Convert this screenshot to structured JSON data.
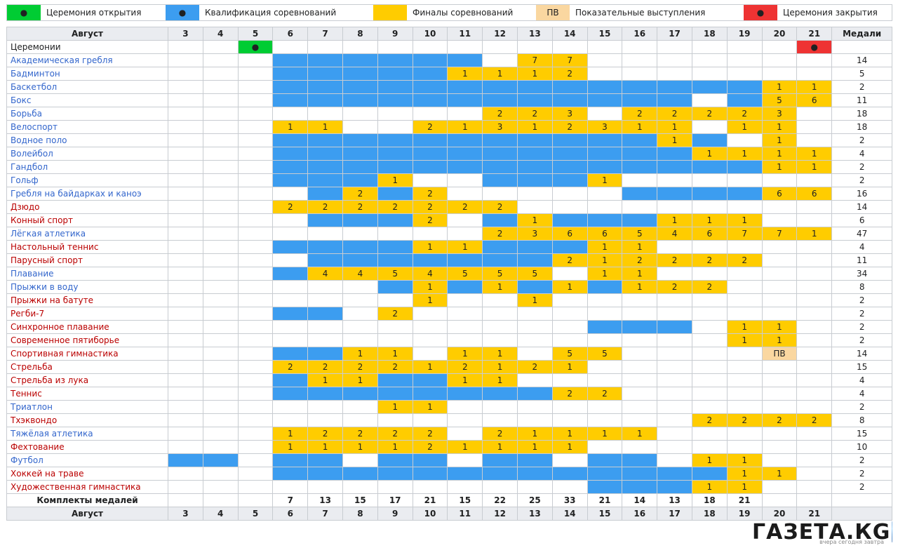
{
  "legend": [
    {
      "swatch": "op",
      "mark": "●",
      "label": "Церемония открытия"
    },
    {
      "swatch": "q",
      "mark": "●",
      "label": "Квалификация соревнований"
    },
    {
      "swatch": "f",
      "mark": "",
      "label": "Финалы соревнований"
    },
    {
      "swatch": "ev",
      "mark": "ПВ",
      "label": "Показательные выступления"
    },
    {
      "swatch": "cl",
      "mark": "●",
      "label": "Церемония закрытия"
    }
  ],
  "header": {
    "month_label": "Август",
    "days": [
      "3",
      "4",
      "5",
      "6",
      "7",
      "8",
      "9",
      "10",
      "11",
      "12",
      "13",
      "14",
      "15",
      "16",
      "17",
      "18",
      "19",
      "20",
      "21"
    ],
    "medals_label": "Медали"
  },
  "ceremonies": {
    "label": "Церемонии",
    "opening_day": "5",
    "closing_day": "21",
    "mark": "●"
  },
  "rows": [
    {
      "sport": "Академическая гребля",
      "color": "blue",
      "cells": [
        "",
        "",
        "",
        "q",
        "q",
        "q",
        "q",
        "q",
        "q",
        "",
        "7",
        "7",
        "",
        "",
        "",
        "",
        "",
        "",
        ""
      ],
      "total": "14"
    },
    {
      "sport": "Бадминтон",
      "color": "blue",
      "cells": [
        "",
        "",
        "",
        "q",
        "q",
        "q",
        "q",
        "q",
        "1",
        "1",
        "1",
        "2",
        "",
        "",
        "",
        "",
        "",
        "",
        ""
      ],
      "total": "5"
    },
    {
      "sport": "Баскетбол",
      "color": "blue",
      "cells": [
        "",
        "",
        "",
        "q",
        "q",
        "q",
        "q",
        "q",
        "q",
        "q",
        "q",
        "q",
        "q",
        "q",
        "q",
        "q",
        "q",
        "1",
        "1"
      ],
      "total": "2"
    },
    {
      "sport": "Бокс",
      "color": "blue",
      "cells": [
        "",
        "",
        "",
        "q",
        "q",
        "q",
        "q",
        "q",
        "q",
        "q",
        "q",
        "q",
        "q",
        "q",
        "q",
        "",
        "q",
        "5",
        "6"
      ],
      "total": "11"
    },
    {
      "sport": "Борьба",
      "color": "blue",
      "cells": [
        "",
        "",
        "",
        "",
        "",
        "",
        "",
        "",
        "",
        "2",
        "2",
        "3",
        "",
        "2",
        "2",
        "2",
        "2",
        "3",
        ""
      ],
      "total": "18"
    },
    {
      "sport": "Велоспорт",
      "color": "blue",
      "cells": [
        "",
        "",
        "",
        "1",
        "1",
        "",
        "",
        "2",
        "1",
        "3",
        "1",
        "2",
        "3",
        "1",
        "1",
        "",
        "1",
        "1",
        ""
      ],
      "total": "18"
    },
    {
      "sport": "Водное поло",
      "color": "blue",
      "cells": [
        "",
        "",
        "",
        "q",
        "q",
        "q",
        "q",
        "q",
        "q",
        "q",
        "q",
        "q",
        "q",
        "q",
        "1",
        "q",
        "",
        "1",
        ""
      ],
      "total": "2"
    },
    {
      "sport": "Волейбол",
      "color": "blue",
      "cells": [
        "",
        "",
        "",
        "q",
        "q",
        "q",
        "q",
        "q",
        "q",
        "q",
        "q",
        "q",
        "q",
        "q",
        "q",
        "1",
        "1",
        "1",
        "1"
      ],
      "total": "4"
    },
    {
      "sport": "Гандбол",
      "color": "blue",
      "cells": [
        "",
        "",
        "",
        "q",
        "q",
        "q",
        "q",
        "q",
        "q",
        "q",
        "q",
        "q",
        "q",
        "q",
        "q",
        "q",
        "q",
        "1",
        "1"
      ],
      "total": "2"
    },
    {
      "sport": "Гольф",
      "color": "blue",
      "cells": [
        "",
        "",
        "",
        "q",
        "q",
        "q",
        "1",
        "",
        "",
        "q",
        "q",
        "q",
        "1",
        "",
        "",
        "",
        "",
        "",
        ""
      ],
      "total": "2"
    },
    {
      "sport": "Гребля на байдарках и каноэ",
      "color": "blue",
      "cells": [
        "",
        "",
        "",
        "",
        "q",
        "2",
        "q",
        "2",
        "",
        "",
        "",
        "",
        "",
        "q",
        "q",
        "q",
        "q",
        "6",
        "6"
      ],
      "total": "16"
    },
    {
      "sport": "Дзюдо",
      "color": "red",
      "cells": [
        "",
        "",
        "",
        "2",
        "2",
        "2",
        "2",
        "2",
        "2",
        "2",
        "",
        "",
        "",
        "",
        "",
        "",
        "",
        "",
        ""
      ],
      "total": "14"
    },
    {
      "sport": "Конный спорт",
      "color": "red",
      "cells": [
        "",
        "",
        "",
        "",
        "q",
        "q",
        "q",
        "2",
        "",
        "q",
        "1",
        "q",
        "q",
        "q",
        "1",
        "1",
        "1",
        "",
        ""
      ],
      "total": "6"
    },
    {
      "sport": "Лёгкая атлетика",
      "color": "blue",
      "cells": [
        "",
        "",
        "",
        "",
        "",
        "",
        "",
        "",
        "",
        "2",
        "3",
        "6",
        "6",
        "5",
        "4",
        "6",
        "7",
        "7",
        "1"
      ],
      "total": "47"
    },
    {
      "sport": "Настольный теннис",
      "color": "red",
      "cells": [
        "",
        "",
        "",
        "q",
        "q",
        "q",
        "q",
        "1",
        "1",
        "q",
        "q",
        "q",
        "1",
        "1",
        "",
        "",
        "",
        "",
        ""
      ],
      "total": "4"
    },
    {
      "sport": "Парусный спорт",
      "color": "red",
      "cells": [
        "",
        "",
        "",
        "",
        "q",
        "q",
        "q",
        "q",
        "q",
        "q",
        "q",
        "2",
        "1",
        "2",
        "2",
        "2",
        "2",
        "",
        ""
      ],
      "total": "11"
    },
    {
      "sport": "Плавание",
      "color": "blue",
      "cells": [
        "",
        "",
        "",
        "q",
        "4",
        "4",
        "5",
        "4",
        "5",
        "5",
        "5",
        "",
        "1",
        "1",
        "",
        "",
        "",
        "",
        ""
      ],
      "total": "34"
    },
    {
      "sport": "Прыжки в воду",
      "color": "blue",
      "cells": [
        "",
        "",
        "",
        "",
        "",
        "",
        "q",
        "1",
        "q",
        "1",
        "q",
        "1",
        "q",
        "1",
        "2",
        "2",
        "",
        "",
        ""
      ],
      "total": "8"
    },
    {
      "sport": "Прыжки на батуте",
      "color": "red",
      "cells": [
        "",
        "",
        "",
        "",
        "",
        "",
        "",
        "1",
        "",
        "",
        "1",
        "",
        "",
        "",
        "",
        "",
        "",
        "",
        ""
      ],
      "total": "2"
    },
    {
      "sport": "Регби-7",
      "color": "red",
      "cells": [
        "",
        "",
        "",
        "q",
        "q",
        "",
        "2",
        "",
        "",
        "",
        "",
        "",
        "",
        "",
        "",
        "",
        "",
        "",
        ""
      ],
      "total": "2"
    },
    {
      "sport": "Синхронное плавание",
      "color": "red",
      "cells": [
        "",
        "",
        "",
        "",
        "",
        "",
        "",
        "",
        "",
        "",
        "",
        "",
        "q",
        "q",
        "q",
        "",
        "1",
        "1",
        ""
      ],
      "total": "2"
    },
    {
      "sport": "Современное пятиборье",
      "color": "red",
      "cells": [
        "",
        "",
        "",
        "",
        "",
        "",
        "",
        "",
        "",
        "",
        "",
        "",
        "",
        "",
        "",
        "",
        "1",
        "1",
        ""
      ],
      "total": "2"
    },
    {
      "sport": "Спортивная гимнастика",
      "color": "red",
      "cells": [
        "",
        "",
        "",
        "q",
        "q",
        "1",
        "1",
        "",
        "1",
        "1",
        "",
        "5",
        "5",
        "",
        "",
        "",
        "",
        "ПВ",
        ""
      ],
      "total": "14"
    },
    {
      "sport": "Стрельба",
      "color": "red",
      "cells": [
        "",
        "",
        "",
        "2",
        "2",
        "2",
        "2",
        "1",
        "2",
        "1",
        "2",
        "1",
        "",
        "",
        "",
        "",
        "",
        "",
        ""
      ],
      "total": "15"
    },
    {
      "sport": "Стрельба из лука",
      "color": "red",
      "cells": [
        "",
        "",
        "",
        "q",
        "1",
        "1",
        "q",
        "q",
        "1",
        "1",
        "",
        "",
        "",
        "",
        "",
        "",
        "",
        "",
        ""
      ],
      "total": "4"
    },
    {
      "sport": "Теннис",
      "color": "red",
      "cells": [
        "",
        "",
        "",
        "q",
        "q",
        "q",
        "q",
        "q",
        "q",
        "q",
        "q",
        "2",
        "2",
        "",
        "",
        "",
        "",
        "",
        ""
      ],
      "total": "4"
    },
    {
      "sport": "Триатлон",
      "color": "blue",
      "cells": [
        "",
        "",
        "",
        "",
        "",
        "",
        "1",
        "1",
        "",
        "",
        "",
        "",
        "",
        "",
        "",
        "",
        "",
        "",
        ""
      ],
      "total": "2"
    },
    {
      "sport": "Тхэквондо",
      "color": "red",
      "cells": [
        "",
        "",
        "",
        "",
        "",
        "",
        "",
        "",
        "",
        "",
        "",
        "",
        "",
        "",
        "",
        "2",
        "2",
        "2",
        "2"
      ],
      "total": "8"
    },
    {
      "sport": "Тяжёлая атлетика",
      "color": "blue",
      "cells": [
        "",
        "",
        "",
        "1",
        "2",
        "2",
        "2",
        "2",
        "",
        "2",
        "1",
        "1",
        "1",
        "1",
        "",
        "",
        "",
        "",
        ""
      ],
      "total": "15"
    },
    {
      "sport": "Фехтование",
      "color": "red",
      "cells": [
        "",
        "",
        "",
        "1",
        "1",
        "1",
        "1",
        "2",
        "1",
        "1",
        "1",
        "1",
        "",
        "",
        "",
        "",
        "",
        "",
        ""
      ],
      "total": "10"
    },
    {
      "sport": "Футбол",
      "color": "blue",
      "cells": [
        "q",
        "q",
        "",
        "q",
        "q",
        "",
        "q",
        "q",
        "",
        "q",
        "q",
        "",
        "q",
        "q",
        "",
        "1",
        "1",
        "",
        ""
      ],
      "total": "2"
    },
    {
      "sport": "Хоккей на траве",
      "color": "red",
      "cells": [
        "",
        "",
        "",
        "q",
        "q",
        "q",
        "q",
        "q",
        "q",
        "q",
        "q",
        "q",
        "q",
        "q",
        "q",
        "q",
        "1",
        "1",
        ""
      ],
      "total": "2"
    },
    {
      "sport": "Художественная гимнастика",
      "color": "red",
      "cells": [
        "",
        "",
        "",
        "",
        "",
        "",
        "",
        "",
        "",
        "",
        "",
        "",
        "q",
        "q",
        "q",
        "1",
        "1",
        "",
        ""
      ],
      "total": "2"
    }
  ],
  "medal_sets": {
    "label": "Комплекты медалей",
    "values": [
      "",
      "",
      "",
      "7",
      "13",
      "15",
      "17",
      "21",
      "15",
      "22",
      "25",
      "33",
      "21",
      "14",
      "13",
      "18",
      "21",
      "",
      ""
    ],
    "total": ""
  },
  "footer": {
    "month_label": "Август"
  },
  "watermark": {
    "text": "ГАЗЕТА.КG",
    "sub": "вчера сегодня завтра"
  },
  "colors": {
    "qualification": "#3c9df0",
    "final": "#ffcc00",
    "opening": "#00cc33",
    "closing": "#ee3333",
    "exhibition": "#fad7a0",
    "sport_blue": "#3366cc",
    "sport_red": "#ba0000"
  }
}
